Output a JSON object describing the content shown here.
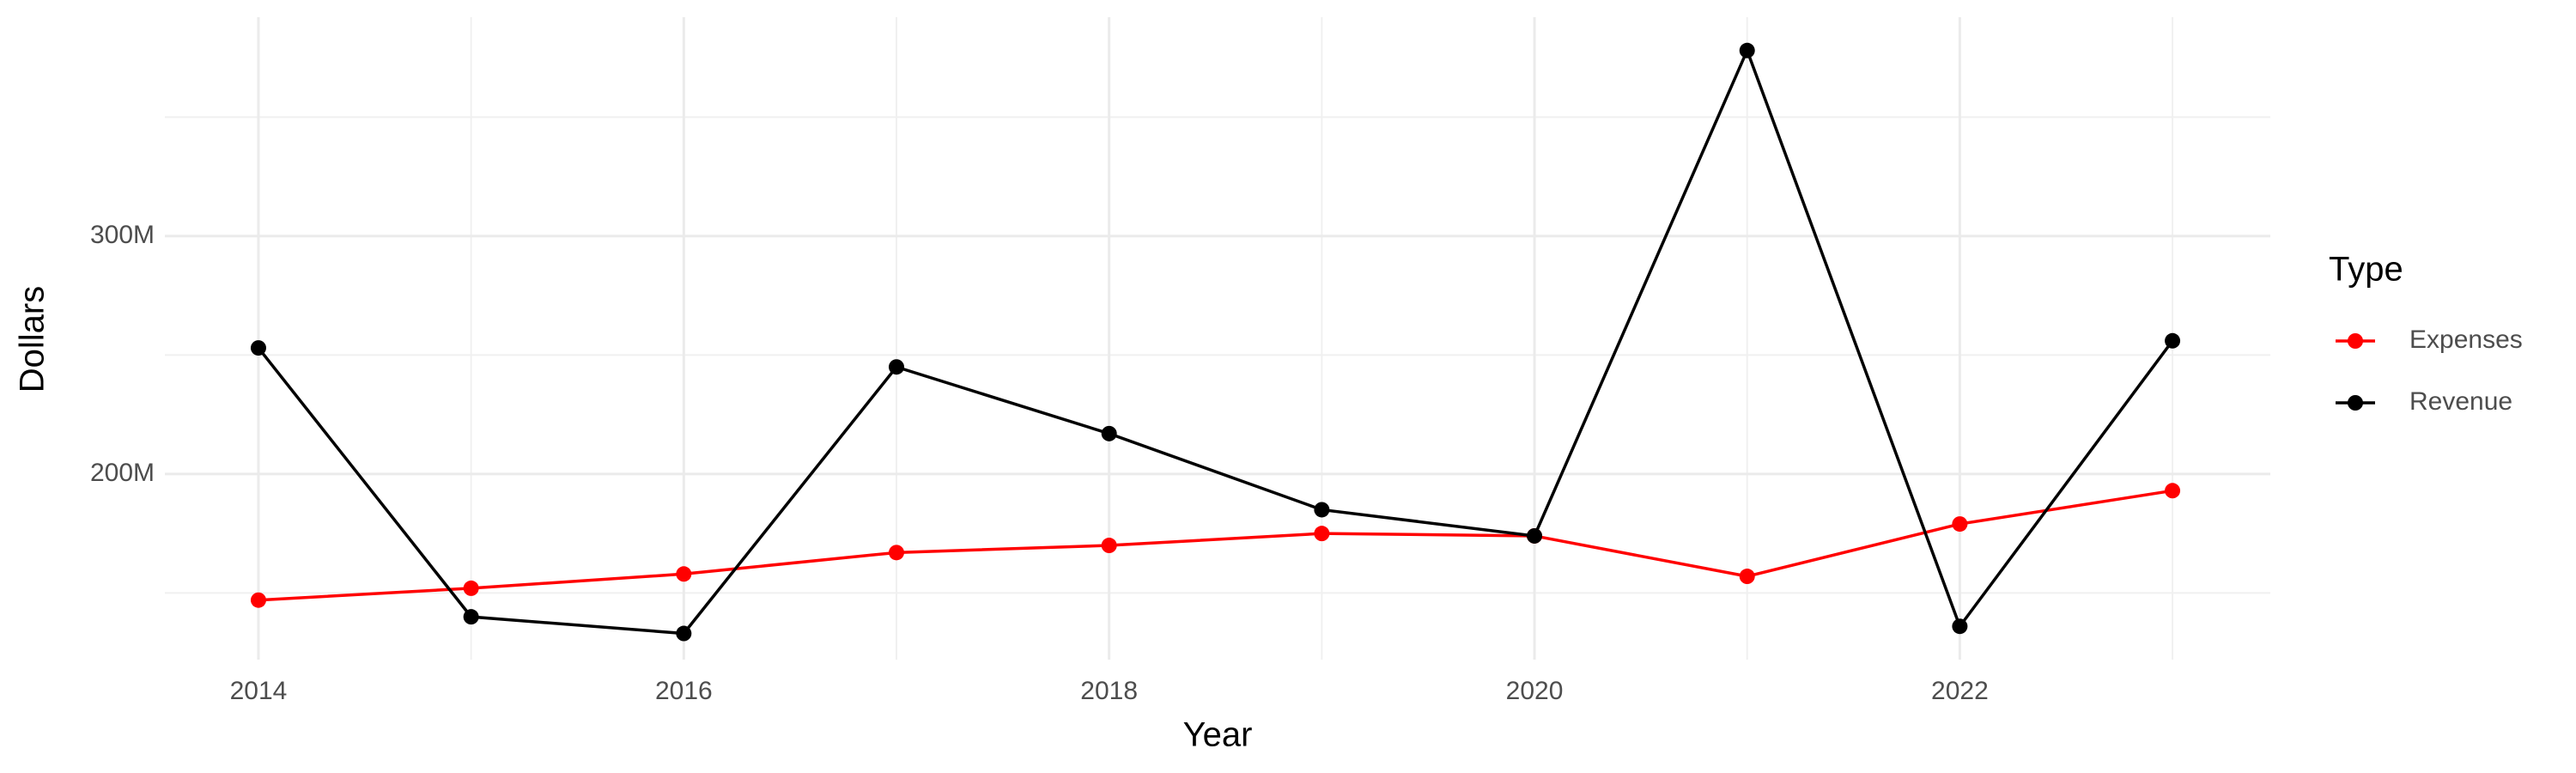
{
  "chart_data": {
    "type": "line",
    "x": [
      2014,
      2015,
      2016,
      2017,
      2018,
      2019,
      2020,
      2021,
      2022,
      2023
    ],
    "series": [
      {
        "name": "Expenses",
        "color": "#ff0000",
        "values": [
          147000000,
          152000000,
          158000000,
          167000000,
          170000000,
          175000000,
          174000000,
          157000000,
          179000000,
          193000000
        ]
      },
      {
        "name": "Revenue",
        "color": "#000000",
        "values": [
          253000000,
          140000000,
          133000000,
          245000000,
          217000000,
          185000000,
          174000000,
          378000000,
          136000000,
          256000000
        ]
      }
    ],
    "xlabel": "Year",
    "ylabel": "Dollars",
    "legend_title": "Type",
    "xlim": [
      2013.56,
      2023.46
    ],
    "ylim": [
      122000000,
      392000000
    ],
    "xticks": [
      2014,
      2016,
      2018,
      2020,
      2022
    ],
    "x_minor_ticks": [
      2015,
      2017,
      2019,
      2021,
      2023
    ],
    "yticks": [
      {
        "value": 200000000,
        "label": "200M"
      },
      {
        "value": 300000000,
        "label": "300M"
      }
    ],
    "y_minor_ticks": [
      150000000,
      250000000,
      350000000
    ],
    "grid": true,
    "legend": "right"
  }
}
